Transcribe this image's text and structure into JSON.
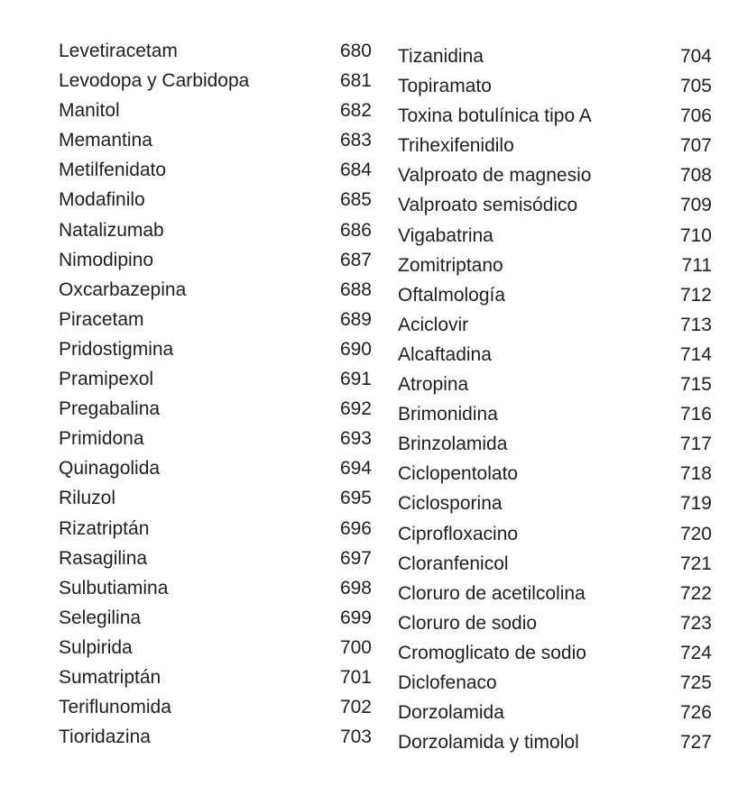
{
  "left_column": [
    {
      "name": "Levetiracetam",
      "page": "680"
    },
    {
      "name": "Levodopa y Carbidopa",
      "page": "681"
    },
    {
      "name": "Manitol",
      "page": "682"
    },
    {
      "name": "Memantina",
      "page": "683"
    },
    {
      "name": "Metilfenidato",
      "page": "684"
    },
    {
      "name": "Modafinilo",
      "page": "685"
    },
    {
      "name": "Natalizumab",
      "page": "686"
    },
    {
      "name": "Nimodipino",
      "page": "687"
    },
    {
      "name": "Oxcarbazepina",
      "page": "688"
    },
    {
      "name": "Piracetam",
      "page": "689"
    },
    {
      "name": "Pridostigmina",
      "page": "690"
    },
    {
      "name": "Pramipexol",
      "page": "691"
    },
    {
      "name": "Pregabalina",
      "page": "692"
    },
    {
      "name": "Primidona",
      "page": "693"
    },
    {
      "name": "Quinagolida",
      "page": "694"
    },
    {
      "name": "Riluzol",
      "page": "695"
    },
    {
      "name": "Rizatriptán",
      "page": "696"
    },
    {
      "name": "Rasagilina",
      "page": "697"
    },
    {
      "name": "Sulbutiamina",
      "page": "698"
    },
    {
      "name": "Selegilina",
      "page": "699"
    },
    {
      "name": "Sulpirida",
      "page": "700"
    },
    {
      "name": "Sumatriptán",
      "page": "701"
    },
    {
      "name": "Teriflunomida",
      "page": "702"
    },
    {
      "name": "Tioridazina",
      "page": "703"
    }
  ],
  "right_column": [
    {
      "name": "Tizanidina",
      "page": "704"
    },
    {
      "name": "Topiramato",
      "page": "705"
    },
    {
      "name": "Toxina botulínica tipo A",
      "page": "706"
    },
    {
      "name": "Trihexifenidilo",
      "page": "707"
    },
    {
      "name": "Valproato de magnesio",
      "page": "708"
    },
    {
      "name": "Valproato semisódico",
      "page": "709"
    },
    {
      "name": "Vigabatrina",
      "page": "710"
    },
    {
      "name": "Zomitriptano",
      "page": "711"
    },
    {
      "name": "Oftalmología",
      "page": "712"
    },
    {
      "name": "Aciclovir",
      "page": "713"
    },
    {
      "name": "Alcaftadina",
      "page": "714"
    },
    {
      "name": "Atropina",
      "page": "715"
    },
    {
      "name": "Brimonidina",
      "page": "716"
    },
    {
      "name": "Brinzolamida",
      "page": "717"
    },
    {
      "name": "Ciclopentolato",
      "page": "718"
    },
    {
      "name": "Ciclosporina",
      "page": "719"
    },
    {
      "name": "Ciprofloxacino",
      "page": "720"
    },
    {
      "name": "Cloranfenicol",
      "page": "721"
    },
    {
      "name": "Cloruro de acetilcolina",
      "page": "722"
    },
    {
      "name": "Cloruro de sodio",
      "page": "723"
    },
    {
      "name": "Cromoglicato de sodio",
      "page": "724"
    },
    {
      "name": "Diclofenaco",
      "page": "725"
    },
    {
      "name": "Dorzolamida",
      "page": "726"
    },
    {
      "name": "Dorzolamida y timolol",
      "page": "727"
    }
  ]
}
